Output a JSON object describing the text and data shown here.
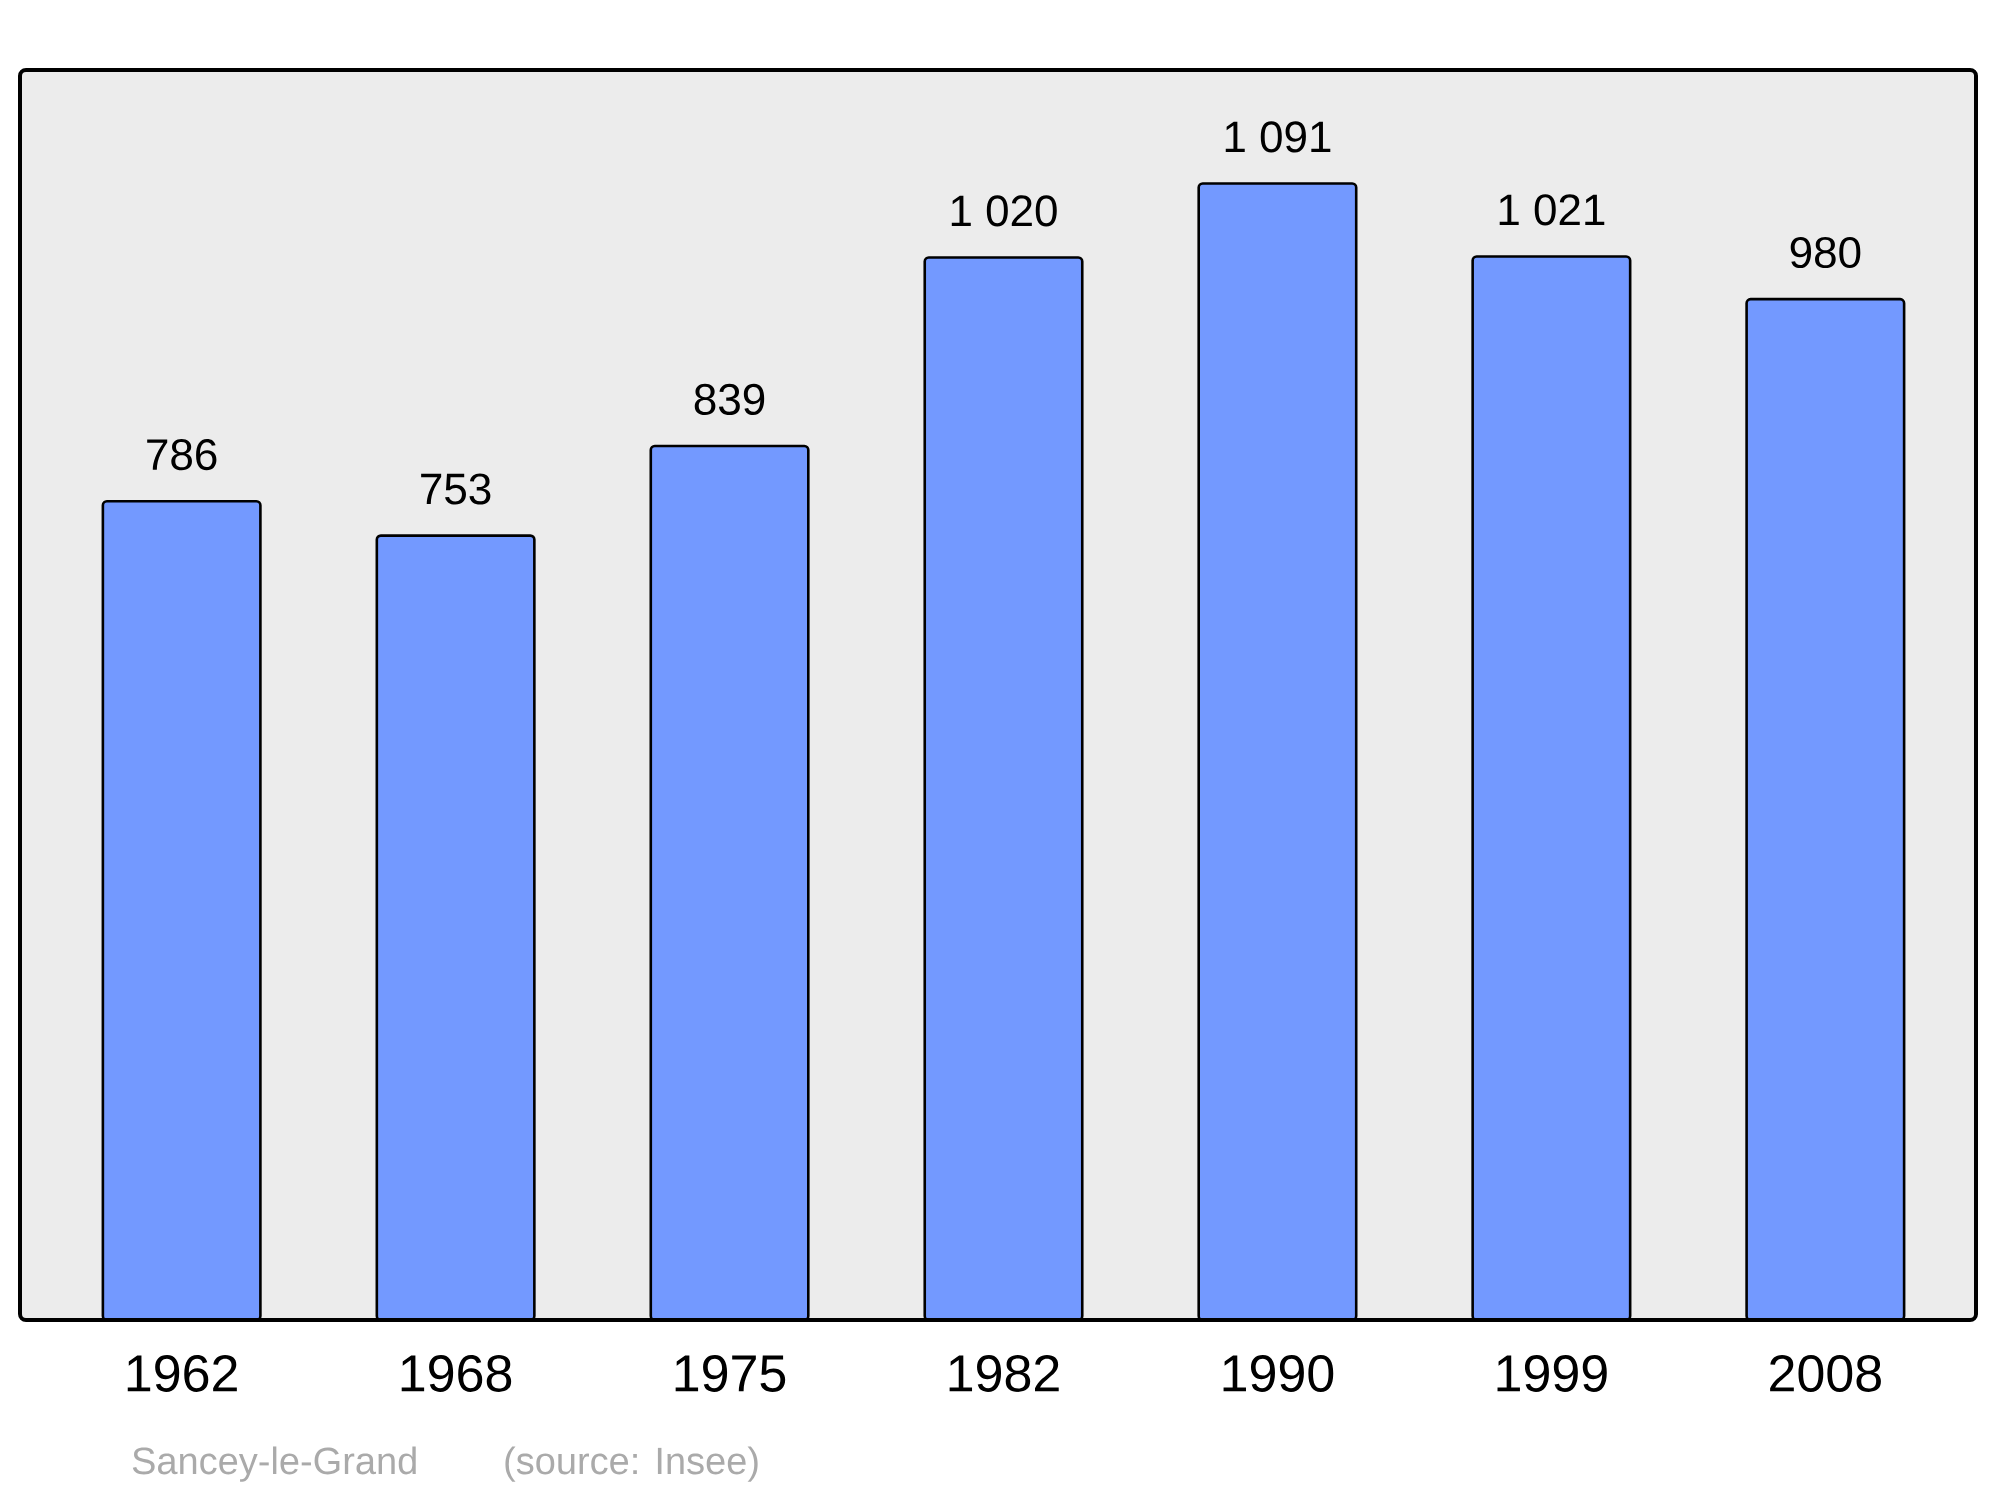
{
  "chart_data": {
    "type": "bar",
    "categories": [
      "1962",
      "1968",
      "1975",
      "1982",
      "1990",
      "1999",
      "2008"
    ],
    "values": [
      786,
      753,
      839,
      1020,
      1091,
      1021,
      980
    ],
    "value_labels": [
      "786",
      "753",
      "839",
      "1 020",
      "1 091",
      "1 021",
      "980"
    ],
    "color": "#7399ff",
    "ylim": [
      0,
      1200
    ],
    "tick_labels": "x",
    "annotations": [
      "Sancey-le-Grand",
      "(source: Insee)"
    ]
  }
}
